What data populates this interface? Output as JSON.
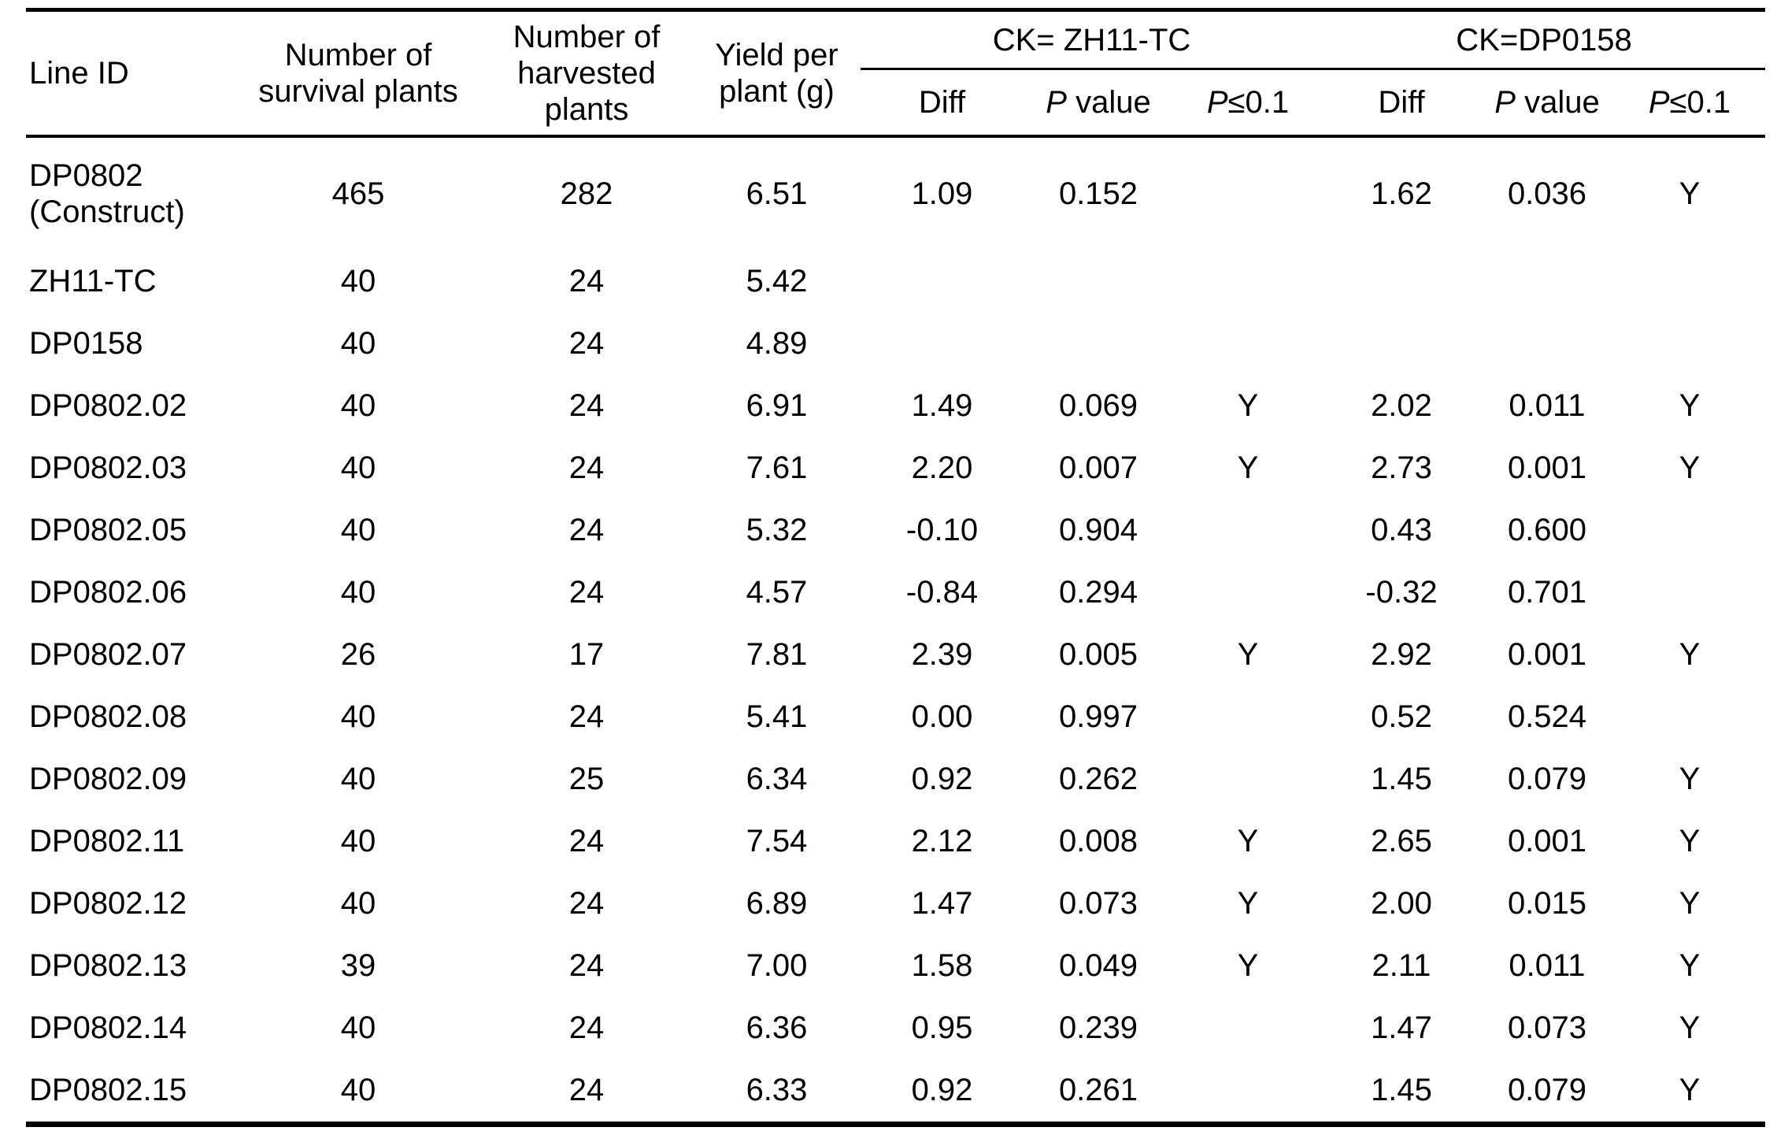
{
  "table": {
    "header": {
      "line_id": "Line ID",
      "survival": "Number of survival plants",
      "harvested": "Number of harvested plants",
      "yield": "Yield per plant (g)",
      "group_zh11": "CK= ZH11-TC",
      "group_dp0158": "CK=DP0158",
      "sub_diff": "Diff",
      "sub_p_italic": "P",
      "sub_value_text": " value",
      "sub_leq_text": "≤0.1"
    },
    "rows": [
      {
        "id": "DP0802 (Construct)",
        "survival": "465",
        "harvested": "282",
        "yield": "6.51",
        "diff1": "1.09",
        "p1": "0.152",
        "sig1": "",
        "diff2": "1.62",
        "p2": "0.036",
        "sig2": "Y"
      },
      {
        "id": "ZH11-TC",
        "survival": "40",
        "harvested": "24",
        "yield": "5.42",
        "diff1": "",
        "p1": "",
        "sig1": "",
        "diff2": "",
        "p2": "",
        "sig2": ""
      },
      {
        "id": "DP0158",
        "survival": "40",
        "harvested": "24",
        "yield": "4.89",
        "diff1": "",
        "p1": "",
        "sig1": "",
        "diff2": "",
        "p2": "",
        "sig2": ""
      },
      {
        "id": "DP0802.02",
        "survival": "40",
        "harvested": "24",
        "yield": "6.91",
        "diff1": "1.49",
        "p1": "0.069",
        "sig1": "Y",
        "diff2": "2.02",
        "p2": "0.011",
        "sig2": "Y"
      },
      {
        "id": "DP0802.03",
        "survival": "40",
        "harvested": "24",
        "yield": "7.61",
        "diff1": "2.20",
        "p1": "0.007",
        "sig1": "Y",
        "diff2": "2.73",
        "p2": "0.001",
        "sig2": "Y"
      },
      {
        "id": "DP0802.05",
        "survival": "40",
        "harvested": "24",
        "yield": "5.32",
        "diff1": "-0.10",
        "p1": "0.904",
        "sig1": "",
        "diff2": "0.43",
        "p2": "0.600",
        "sig2": ""
      },
      {
        "id": "DP0802.06",
        "survival": "40",
        "harvested": "24",
        "yield": "4.57",
        "diff1": "-0.84",
        "p1": "0.294",
        "sig1": "",
        "diff2": "-0.32",
        "p2": "0.701",
        "sig2": ""
      },
      {
        "id": "DP0802.07",
        "survival": "26",
        "harvested": "17",
        "yield": "7.81",
        "diff1": "2.39",
        "p1": "0.005",
        "sig1": "Y",
        "diff2": "2.92",
        "p2": "0.001",
        "sig2": "Y"
      },
      {
        "id": "DP0802.08",
        "survival": "40",
        "harvested": "24",
        "yield": "5.41",
        "diff1": "0.00",
        "p1": "0.997",
        "sig1": "",
        "diff2": "0.52",
        "p2": "0.524",
        "sig2": ""
      },
      {
        "id": "DP0802.09",
        "survival": "40",
        "harvested": "25",
        "yield": "6.34",
        "diff1": "0.92",
        "p1": "0.262",
        "sig1": "",
        "diff2": "1.45",
        "p2": "0.079",
        "sig2": "Y"
      },
      {
        "id": "DP0802.11",
        "survival": "40",
        "harvested": "24",
        "yield": "7.54",
        "diff1": "2.12",
        "p1": "0.008",
        "sig1": "Y",
        "diff2": "2.65",
        "p2": "0.001",
        "sig2": "Y"
      },
      {
        "id": "DP0802.12",
        "survival": "40",
        "harvested": "24",
        "yield": "6.89",
        "diff1": "1.47",
        "p1": "0.073",
        "sig1": "Y",
        "diff2": "2.00",
        "p2": "0.015",
        "sig2": "Y"
      },
      {
        "id": "DP0802.13",
        "survival": "39",
        "harvested": "24",
        "yield": "7.00",
        "diff1": "1.58",
        "p1": "0.049",
        "sig1": "Y",
        "diff2": "2.11",
        "p2": "0.011",
        "sig2": "Y"
      },
      {
        "id": "DP0802.14",
        "survival": "40",
        "harvested": "24",
        "yield": "6.36",
        "diff1": "0.95",
        "p1": "0.239",
        "sig1": "",
        "diff2": "1.47",
        "p2": "0.073",
        "sig2": "Y"
      },
      {
        "id": "DP0802.15",
        "survival": "40",
        "harvested": "24",
        "yield": "6.33",
        "diff1": "0.92",
        "p1": "0.261",
        "sig1": "",
        "diff2": "1.45",
        "p2": "0.079",
        "sig2": "Y"
      }
    ]
  }
}
